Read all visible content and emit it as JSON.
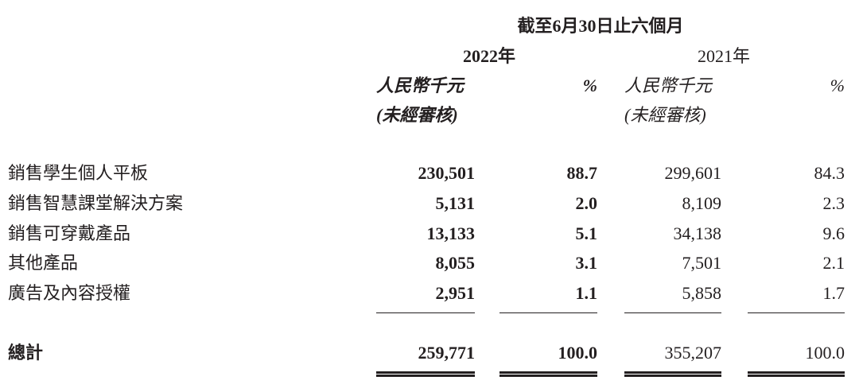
{
  "header": {
    "period": "截至6月30日止六個月",
    "year_2022": "2022年",
    "year_2021": "2021年",
    "unit_2022": "人民幣千元",
    "pct_2022": "%",
    "unit_2021": "人民幣千元",
    "pct_2021": "%",
    "audit_2022": "(未經審核)",
    "audit_2021": "(未經審核)"
  },
  "rows": [
    {
      "label": "銷售學生個人平板",
      "v2022": "230,501",
      "p2022": "88.7",
      "v2021": "299,601",
      "p2021": "84.3"
    },
    {
      "label": "銷售智慧課堂解決方案",
      "v2022": "5,131",
      "p2022": "2.0",
      "v2021": "8,109",
      "p2021": "2.3"
    },
    {
      "label": "銷售可穿戴產品",
      "v2022": "13,133",
      "p2022": "5.1",
      "v2021": "34,138",
      "p2021": "9.6"
    },
    {
      "label": "其他產品",
      "v2022": "8,055",
      "p2022": "3.1",
      "v2021": "7,501",
      "p2021": "2.1"
    },
    {
      "label": "廣告及內容授權",
      "v2022": "2,951",
      "p2022": "1.1",
      "v2021": "5,858",
      "p2021": "1.7"
    }
  ],
  "total": {
    "label": "總計",
    "v2022": "259,771",
    "p2022": "100.0",
    "v2021": "355,207",
    "p2021": "100.0"
  }
}
